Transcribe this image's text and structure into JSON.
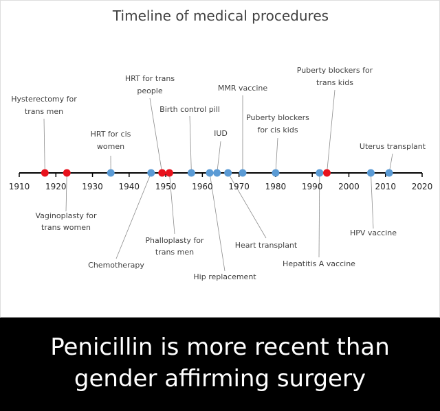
{
  "chart_data": {
    "type": "scatter",
    "title": "Timeline of medical procedures",
    "xlabel": "",
    "ylabel": "",
    "xlim": [
      1910,
      2020
    ],
    "x_ticks": [
      1910,
      1920,
      1930,
      1940,
      1950,
      1960,
      1970,
      1980,
      1990,
      2000,
      2010,
      2020
    ],
    "grid": false,
    "legend": "none",
    "series_colors": {
      "trans": "#e8121d",
      "other": "#5b9bd5"
    },
    "events": [
      {
        "label": "Hysterectomy for trans men",
        "year": 1917,
        "category": "trans",
        "side": "above"
      },
      {
        "label": "Vaginoplasty for trans women",
        "year": 1923,
        "category": "trans",
        "side": "below"
      },
      {
        "label": "HRT for cis women",
        "year": 1935,
        "category": "other",
        "side": "above"
      },
      {
        "label": "Chemotherapy",
        "year": 1946,
        "category": "other",
        "side": "below"
      },
      {
        "label": "HRT for trans people",
        "year": 1949,
        "category": "trans",
        "side": "above"
      },
      {
        "label": "Phalloplasty for trans men",
        "year": 1951,
        "category": "trans",
        "side": "below"
      },
      {
        "label": "Birth control pill",
        "year": 1957,
        "category": "other",
        "side": "above"
      },
      {
        "label": "Hip replacement",
        "year": 1962,
        "category": "other",
        "side": "below"
      },
      {
        "label": "IUD",
        "year": 1964,
        "category": "other",
        "side": "above"
      },
      {
        "label": "Heart transplant",
        "year": 1967,
        "category": "other",
        "side": "below"
      },
      {
        "label": "MMR vaccine",
        "year": 1971,
        "category": "other",
        "side": "above"
      },
      {
        "label": "Puberty blockers for cis kids",
        "year": 1980,
        "category": "other",
        "side": "above"
      },
      {
        "label": "Hepatitis A vaccine",
        "year": 1992,
        "category": "other",
        "side": "below"
      },
      {
        "label": "Puberty blockers for trans kids",
        "year": 1994,
        "category": "trans",
        "side": "above"
      },
      {
        "label": "HPV vaccine",
        "year": 2006,
        "category": "other",
        "side": "below"
      },
      {
        "label": "Uterus transplant",
        "year": 2011,
        "category": "other",
        "side": "above"
      }
    ]
  },
  "title": "Timeline of medical procedures",
  "caption": {
    "line1": "Penicillin is more recent than",
    "line2": "gender affirming surgery"
  }
}
